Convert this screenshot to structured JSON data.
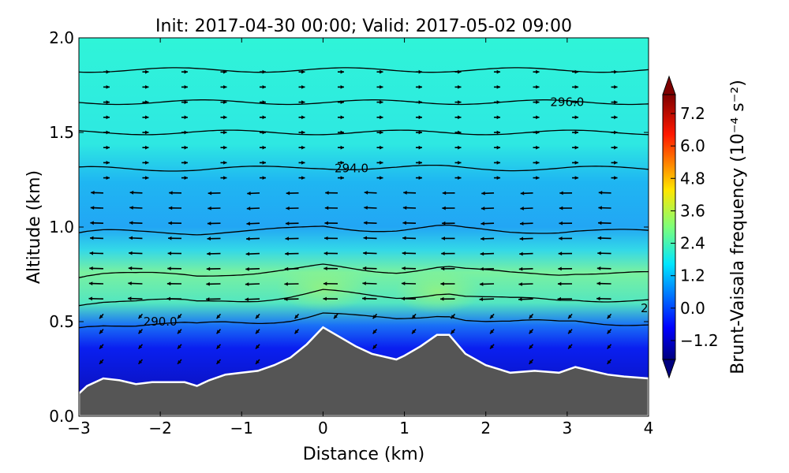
{
  "chart_data": {
    "type": "heatmap",
    "title": "Init: 2017-04-30 00:00; Valid: 2017-05-02 09:00",
    "xlabel": "Distance (km)",
    "ylabel": "Altitude (km)",
    "xlim": [
      -3,
      4
    ],
    "ylim": [
      0,
      2
    ],
    "xticks": [
      "−3",
      "−2",
      "−1",
      "0",
      "1",
      "2",
      "3",
      "4"
    ],
    "xtick_values": [
      -3,
      -2,
      -1,
      0,
      1,
      2,
      3,
      4
    ],
    "yticks": [
      "0.0",
      "0.5",
      "1.0",
      "1.5",
      "2.0"
    ],
    "ytick_values": [
      0.0,
      0.5,
      1.0,
      1.5,
      2.0
    ],
    "colorbar": {
      "label": "Brunt-Vaisala frequency (10⁻⁴ s⁻²)",
      "ticks": [
        "−1.2",
        "0.0",
        "1.2",
        "2.4",
        "3.6",
        "4.8",
        "6.0",
        "7.2"
      ],
      "tick_values": [
        -1.2,
        0.0,
        1.2,
        2.4,
        3.6,
        4.8,
        6.0,
        7.2
      ],
      "range": [
        -1.9,
        7.9
      ],
      "colormap": "jet",
      "extend": "both"
    },
    "colors": {
      "terrain": "#555555",
      "terrain_edge": "#ffffff"
    },
    "terrain": {
      "x": [
        -3.0,
        -2.9,
        -2.7,
        -2.5,
        -2.3,
        -2.1,
        -1.9,
        -1.7,
        -1.55,
        -1.4,
        -1.2,
        -1.0,
        -0.8,
        -0.6,
        -0.4,
        -0.2,
        0.0,
        0.2,
        0.4,
        0.6,
        0.8,
        0.9,
        1.0,
        1.2,
        1.4,
        1.55,
        1.75,
        2.0,
        2.3,
        2.6,
        2.9,
        3.1,
        3.3,
        3.5,
        3.7,
        4.0
      ],
      "z": [
        0.12,
        0.16,
        0.2,
        0.19,
        0.17,
        0.18,
        0.18,
        0.18,
        0.16,
        0.19,
        0.22,
        0.23,
        0.24,
        0.27,
        0.31,
        0.38,
        0.47,
        0.42,
        0.37,
        0.33,
        0.31,
        0.3,
        0.32,
        0.37,
        0.43,
        0.43,
        0.33,
        0.27,
        0.23,
        0.24,
        0.23,
        0.26,
        0.24,
        0.22,
        0.21,
        0.2
      ]
    },
    "theta_contours": [
      {
        "z": 0.5,
        "label": "290.0",
        "label_x": -2.0
      },
      {
        "z": 0.62
      },
      {
        "z": 0.76
      },
      {
        "z": 0.98
      },
      {
        "z": 1.31,
        "label": "294.0",
        "label_x": 0.35
      },
      {
        "z": 1.5
      },
      {
        "z": 1.66,
        "label": "296.0",
        "label_x": 3.0
      },
      {
        "z": 1.83
      }
    ],
    "edge_labels": [
      "2"
    ]
  }
}
